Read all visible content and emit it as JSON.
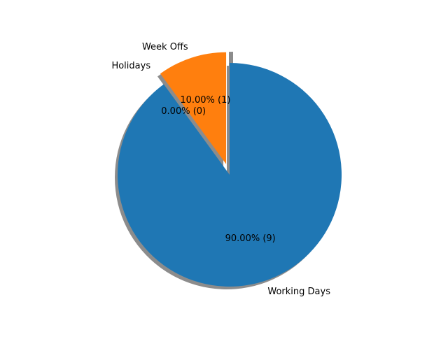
{
  "chart_data": {
    "type": "pie",
    "start_angle_deg": 90,
    "shadow": true,
    "slices": [
      {
        "label": "Week Offs",
        "value": 1,
        "pct_label": "10.00%  (1)",
        "color": "#ff7f0e",
        "explode": 0.1
      },
      {
        "label": "Holidays",
        "value": 0,
        "pct_label": "0.00%  (0)",
        "color": "#2ca02c",
        "explode": 0.1
      },
      {
        "label": "Working Days",
        "value": 9,
        "pct_label": "90.00%  (9)",
        "color": "#1f77b4",
        "explode": 0
      }
    ]
  }
}
